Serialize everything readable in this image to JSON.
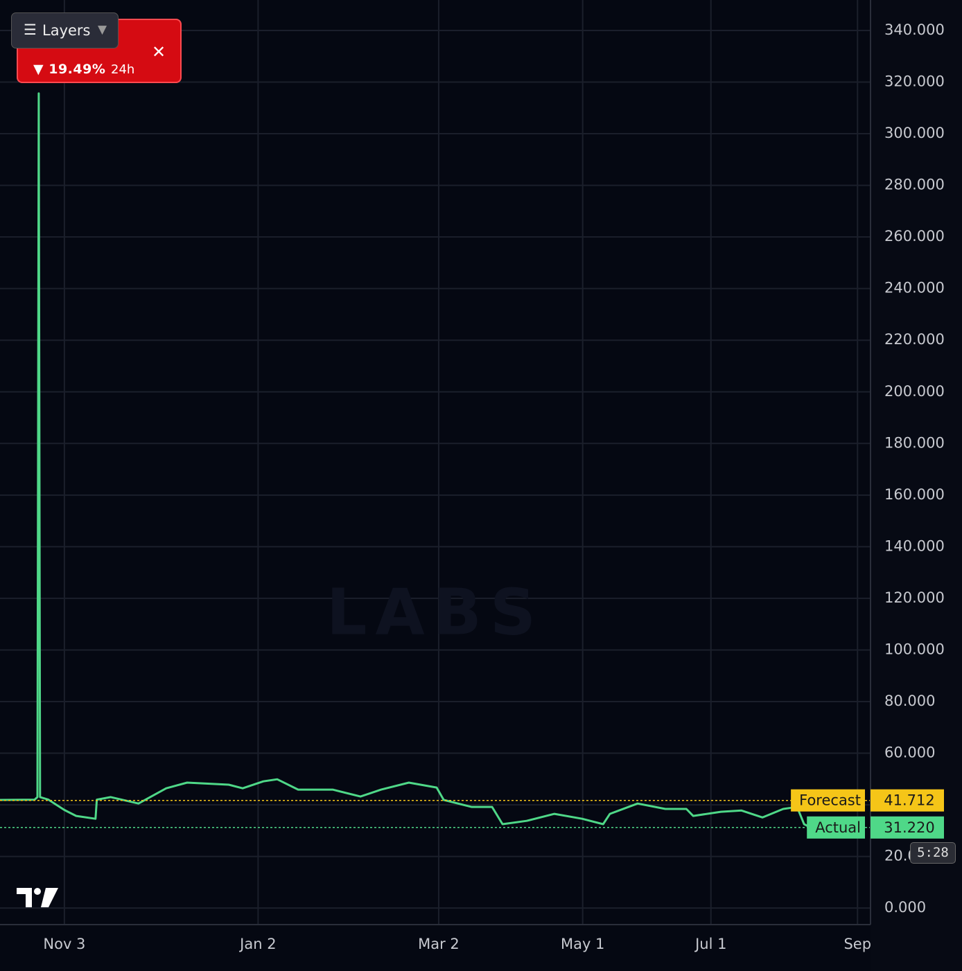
{
  "chart_data": {
    "type": "line",
    "watermark": "LABS",
    "x": [
      -24.6,
      -11.4,
      -10.3,
      -9.8,
      -9.3,
      -6.1,
      0,
      4.5,
      11.9,
      12.4,
      17.7,
      28.3,
      38.9,
      46.9,
      62.8,
      68.1,
      76.0,
      81.3,
      89.3,
      102.5,
      113.1,
      121.0,
      131.6,
      142.2,
      144.9,
      155.5,
      163.4,
      167.4,
      176.6,
      187.2,
      197.8,
      205.8,
      208.4,
      219.0,
      229.6,
      237.6,
      240.2,
      250.8,
      258.7,
      266.7,
      274.6,
      279.9,
      282.6,
      285.2
    ],
    "series": [
      {
        "color": "#4fd888",
        "values": [
          41.9,
          42.0,
          43.0,
          315.6,
          43.0,
          42.0,
          38.0,
          35.7,
          34.6,
          42.0,
          43.0,
          40.5,
          46.4,
          48.6,
          47.8,
          46.4,
          49.1,
          49.9,
          45.9,
          45.9,
          43.2,
          45.9,
          48.6,
          46.7,
          41.9,
          39.2,
          39.2,
          32.5,
          33.8,
          36.5,
          34.6,
          32.5,
          36.5,
          40.5,
          38.4,
          38.4,
          35.7,
          37.3,
          37.8,
          35.1,
          38.4,
          39.2,
          32.5,
          31.1
        ]
      }
    ],
    "reference_lines": [
      {
        "name": "Forecast",
        "value": 41.712,
        "label": "41.712",
        "color": "#f5c518"
      },
      {
        "name": "Actual",
        "value": 31.22,
        "label": "31.220",
        "color": "#4fd888"
      }
    ],
    "xlim": [
      -24.6,
      307.7
    ],
    "xticks": [
      {
        "value": 0,
        "label": "Nov 3"
      },
      {
        "value": 74,
        "label": "Jan 2"
      },
      {
        "value": 143,
        "label": "Mar 2"
      },
      {
        "value": 198,
        "label": "May 1"
      },
      {
        "value": 247,
        "label": "Jul 1"
      },
      {
        "value": 303,
        "label": "Sep"
      }
    ],
    "ylim": [
      -6.4,
      351.8
    ],
    "yticks": [
      {
        "value": 0,
        "label": "0.000"
      },
      {
        "value": 20,
        "label": "20.000"
      },
      {
        "value": 40,
        "label": "40.000"
      },
      {
        "value": 60,
        "label": "60.000"
      },
      {
        "value": 80,
        "label": "80.000"
      },
      {
        "value": 100,
        "label": "100.000"
      },
      {
        "value": 120,
        "label": "120.000"
      },
      {
        "value": 140,
        "label": "140.000"
      },
      {
        "value": 160,
        "label": "160.000"
      },
      {
        "value": 180,
        "label": "180.000"
      },
      {
        "value": 200,
        "label": "200.000"
      },
      {
        "value": 220,
        "label": "220.000"
      },
      {
        "value": 240,
        "label": "240.000"
      },
      {
        "value": 260,
        "label": "260.000"
      },
      {
        "value": 280,
        "label": "280.000"
      },
      {
        "value": 300,
        "label": "300.000"
      },
      {
        "value": 320,
        "label": "320.000"
      },
      {
        "value": 340,
        "label": "340.000"
      }
    ],
    "grid": true
  },
  "ui": {
    "layers": "Layers",
    "change": "19.49%",
    "period": "24h",
    "countdown": "5:28"
  }
}
